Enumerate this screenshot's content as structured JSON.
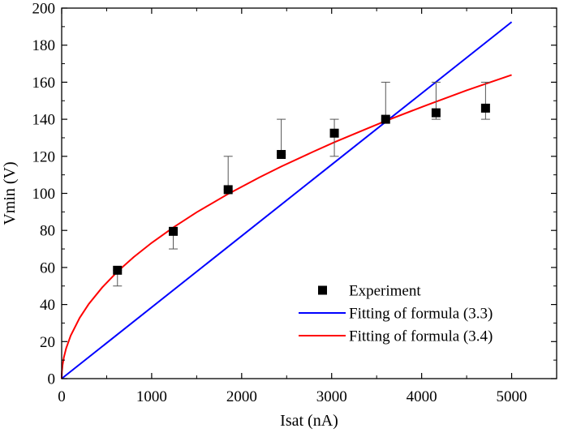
{
  "chart_data": {
    "type": "scatter",
    "xlabel": "Isat (nA)",
    "ylabel": "Vmin (V)",
    "xlim": [
      0,
      5500
    ],
    "ylim": [
      0,
      200
    ],
    "x_ticks": [
      0,
      1000,
      2000,
      3000,
      4000,
      5000
    ],
    "y_ticks": [
      0,
      20,
      40,
      60,
      80,
      100,
      120,
      140,
      160,
      180,
      200
    ],
    "grid": false,
    "legend_position": "bottom-right",
    "series": [
      {
        "name": "Experiment",
        "kind": "points",
        "marker": "square",
        "color": "#000000",
        "x": [
          620,
          1240,
          1850,
          2440,
          3030,
          3600,
          4160,
          4710
        ],
        "y": [
          58.5,
          79.5,
          102,
          121,
          132.5,
          140,
          143.5,
          146
        ],
        "error_low": [
          50,
          70,
          102,
          121,
          120,
          140,
          140,
          140
        ],
        "error_high": [
          58.5,
          79.5,
          120,
          140,
          140,
          160,
          160,
          160
        ]
      },
      {
        "name": "Fitting of formula (3.3)",
        "kind": "line",
        "color": "#0000ff",
        "x": [
          0,
          5000
        ],
        "y": [
          0,
          192.5
        ]
      },
      {
        "name": "Fitting of formula (3.4)",
        "kind": "line",
        "color": "#ff0000",
        "x": [
          0,
          2.5,
          10,
          25,
          50,
          100,
          200,
          300,
          450,
          620,
          800,
          1000,
          1240,
          1500,
          1850,
          2200,
          2440,
          2800,
          3030,
          3400,
          3600,
          4000,
          4160,
          4500,
          4710,
          5000
        ],
        "y": [
          0,
          3.7,
          7.3,
          11.6,
          16.4,
          23.2,
          32.8,
          40.2,
          49.2,
          57.8,
          65.6,
          73.3,
          81.6,
          89.8,
          99.7,
          108.7,
          114.5,
          122.6,
          127.6,
          135.1,
          139.1,
          146.6,
          149.5,
          155.6,
          159.1,
          163.9
        ]
      }
    ]
  }
}
